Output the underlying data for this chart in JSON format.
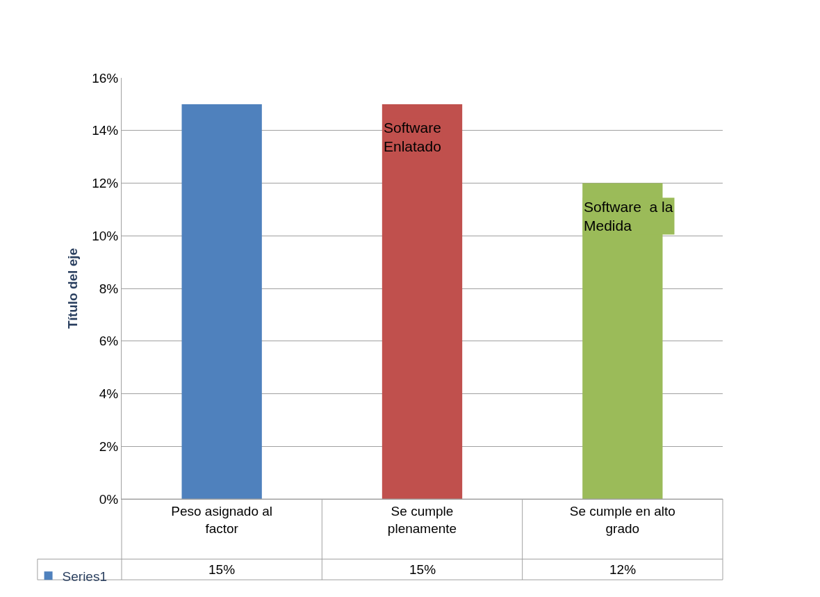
{
  "chart_data": {
    "type": "bar",
    "ylabel": "Título del eje",
    "categories": [
      "Peso asignado al factor",
      "Se cumple plenamente",
      "Se cumple en alto grado"
    ],
    "series": [
      {
        "name": "Series1",
        "colors": [
          "#4f81bd",
          "#c0504d",
          "#9bbb59"
        ],
        "values": [
          15,
          15,
          12
        ],
        "value_labels": [
          "15%",
          "15%",
          "12%"
        ]
      }
    ],
    "ylim": [
      0,
      16
    ],
    "yticks": [
      {
        "value": 0,
        "label": "0%"
      },
      {
        "value": 2,
        "label": "2%"
      },
      {
        "value": 4,
        "label": "4%"
      },
      {
        "value": 6,
        "label": "6%"
      },
      {
        "value": 8,
        "label": "8%"
      },
      {
        "value": 10,
        "label": "10%"
      },
      {
        "value": 12,
        "label": "12%"
      },
      {
        "value": 14,
        "label": "14%"
      },
      {
        "value": 16,
        "label": "16%"
      }
    ],
    "grid": "y",
    "legend": "bottom left",
    "annotations": [
      "Software\nEnlatado",
      "Software  a la\nMedida"
    ]
  }
}
